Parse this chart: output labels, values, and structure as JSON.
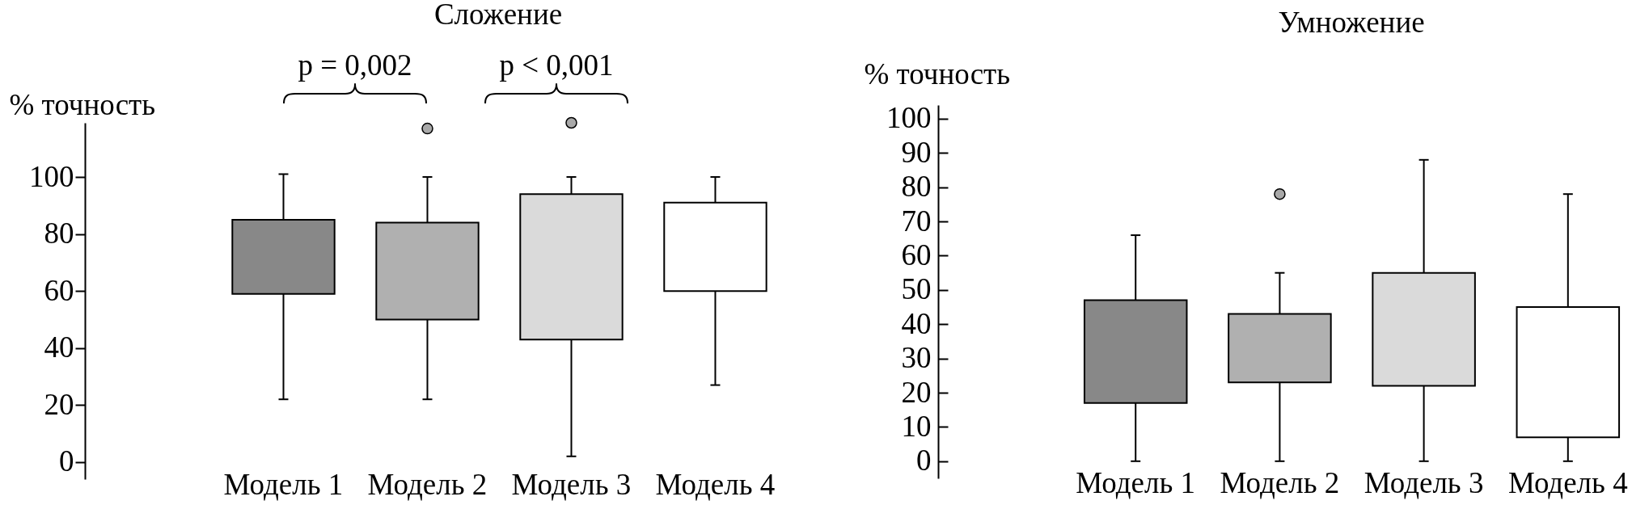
{
  "chart_data": [
    {
      "type": "box",
      "title": "Сложение",
      "ylabel": "% точность",
      "categories": [
        "Модель 1",
        "Модель 2",
        "Модель 3",
        "Модель 4"
      ],
      "boxes": [
        {
          "low": 22,
          "q1": 59,
          "q3": 85,
          "high": 101
        },
        {
          "low": 22,
          "q1": 50,
          "q3": 84,
          "high": 100,
          "outliers": [
            117
          ]
        },
        {
          "low": 2,
          "q1": 43,
          "q3": 94,
          "high": 100,
          "outliers": [
            119
          ]
        },
        {
          "low": 27,
          "q1": 60,
          "q3": 91,
          "high": 100
        }
      ],
      "colors": [
        "#888888",
        "#b0b0b0",
        "#dadada",
        "#ffffff"
      ],
      "color": "#a9a9a9",
      "ylim": [
        -6,
        119
      ],
      "yticks": [
        0,
        20,
        40,
        60,
        80,
        100
      ],
      "annotations": [
        "p = 0,002",
        "p < 0,001"
      ]
    },
    {
      "type": "box",
      "title": "Умножение",
      "ylabel": "% точность",
      "categories": [
        "Модель 1",
        "Модель 2",
        "Модель 3",
        "Модель 4"
      ],
      "boxes": [
        {
          "low": 0,
          "q1": 17,
          "q3": 47,
          "high": 66
        },
        {
          "low": 0,
          "q1": 23,
          "q3": 43,
          "high": 55,
          "outliers": [
            78
          ]
        },
        {
          "low": 0,
          "q1": 22,
          "q3": 55,
          "high": 88
        },
        {
          "low": 0,
          "q1": 7,
          "q3": 45,
          "high": 78
        }
      ],
      "colors": [
        "#888888",
        "#b0b0b0",
        "#dadada",
        "#ffffff"
      ],
      "color": "#a9a9a9",
      "ylim": [
        -5,
        104
      ],
      "yticks": [
        0,
        10,
        20,
        30,
        40,
        50,
        60,
        70,
        80,
        90,
        100
      ]
    }
  ]
}
